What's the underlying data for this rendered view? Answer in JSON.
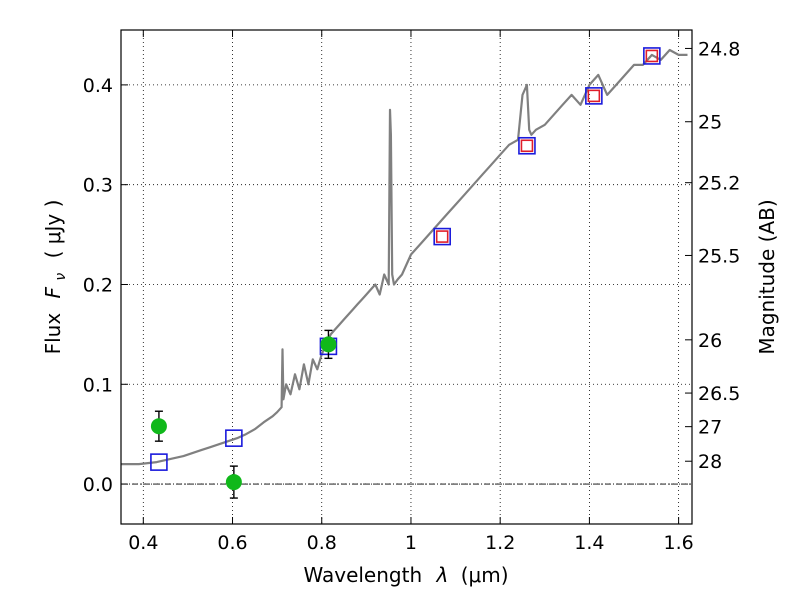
{
  "chart_data": {
    "type": "scatter",
    "xlabel_prefix": "Wavelength",
    "xlabel_symbol": "λ",
    "xlabel_unit": "(μm)",
    "ylabel_prefix": "Flux",
    "ylabel_symbol": "F",
    "ylabel_subscript": "ν",
    "ylabel_unit": "( μJy )",
    "y2label": "Magnitude (AB)",
    "xlim": [
      0.35,
      1.63
    ],
    "ylim": [
      -0.04,
      0.455
    ],
    "xticks": [
      0.4,
      0.6,
      0.8,
      1.0,
      1.2,
      1.4,
      1.6
    ],
    "xtick_labels": [
      "0.4",
      "0.6",
      "0.8",
      "1",
      "1.2",
      "1.4",
      "1.6"
    ],
    "yticks": [
      0.0,
      0.1,
      0.2,
      0.3,
      0.4
    ],
    "ytick_labels": [
      "0.0",
      "0.1",
      "0.2",
      "0.3",
      "0.4"
    ],
    "y2ticks": [
      {
        "label": "24.8",
        "mag": 24.8
      },
      {
        "label": "25",
        "mag": 25.0
      },
      {
        "label": "25.2",
        "mag": 25.2
      },
      {
        "label": "25.5",
        "mag": 25.5
      },
      {
        "label": "26",
        "mag": 26.0
      },
      {
        "label": "26.5",
        "mag": 26.5
      },
      {
        "label": "27",
        "mag": 27.0
      },
      {
        "label": "28",
        "mag": 28.0
      }
    ],
    "grid": true,
    "zero_line": true,
    "series": [
      {
        "kind": "line",
        "color": "#808080",
        "x": [
          0.35,
          0.37,
          0.39,
          0.41,
          0.43,
          0.45,
          0.47,
          0.49,
          0.51,
          0.53,
          0.55,
          0.57,
          0.59,
          0.61,
          0.63,
          0.65,
          0.67,
          0.69,
          0.7,
          0.71,
          0.712,
          0.714,
          0.72,
          0.73,
          0.74,
          0.75,
          0.76,
          0.77,
          0.78,
          0.79,
          0.8,
          0.81,
          0.82,
          0.83,
          0.84,
          0.85,
          0.86,
          0.87,
          0.88,
          0.89,
          0.9,
          0.91,
          0.92,
          0.93,
          0.94,
          0.95,
          0.953,
          0.955,
          0.958,
          0.962,
          0.97,
          0.98,
          0.99,
          1.0,
          1.02,
          1.04,
          1.06,
          1.08,
          1.1,
          1.12,
          1.14,
          1.16,
          1.18,
          1.2,
          1.22,
          1.24,
          1.25,
          1.26,
          1.265,
          1.27,
          1.28,
          1.3,
          1.32,
          1.34,
          1.36,
          1.38,
          1.4,
          1.42,
          1.44,
          1.46,
          1.48,
          1.5,
          1.52,
          1.54,
          1.56,
          1.58,
          1.6,
          1.62
        ],
        "y": [
          0.02,
          0.02,
          0.02,
          0.021,
          0.022,
          0.024,
          0.026,
          0.028,
          0.031,
          0.034,
          0.037,
          0.04,
          0.043,
          0.046,
          0.05,
          0.055,
          0.062,
          0.068,
          0.072,
          0.077,
          0.135,
          0.085,
          0.1,
          0.09,
          0.11,
          0.095,
          0.12,
          0.1,
          0.125,
          0.115,
          0.13,
          0.14,
          0.15,
          0.155,
          0.16,
          0.165,
          0.17,
          0.175,
          0.18,
          0.185,
          0.19,
          0.195,
          0.2,
          0.19,
          0.21,
          0.2,
          0.375,
          0.35,
          0.21,
          0.2,
          0.205,
          0.21,
          0.22,
          0.23,
          0.24,
          0.25,
          0.26,
          0.27,
          0.28,
          0.29,
          0.3,
          0.31,
          0.32,
          0.33,
          0.34,
          0.345,
          0.39,
          0.4,
          0.355,
          0.35,
          0.355,
          0.36,
          0.37,
          0.38,
          0.39,
          0.38,
          0.4,
          0.41,
          0.39,
          0.4,
          0.41,
          0.42,
          0.42,
          0.43,
          0.425,
          0.435,
          0.43,
          0.43
        ]
      },
      {
        "kind": "squares",
        "name": "",
        "edgecolor": "#1a1adc",
        "points": [
          {
            "x": 0.435,
            "y": 0.022
          },
          {
            "x": 0.603,
            "y": 0.046
          },
          {
            "x": 0.815,
            "y": 0.138
          },
          {
            "x": 1.07,
            "y": 0.248
          },
          {
            "x": 1.26,
            "y": 0.339
          },
          {
            "x": 1.41,
            "y": 0.389
          },
          {
            "x": 1.54,
            "y": 0.429
          }
        ]
      },
      {
        "kind": "squares",
        "name": "",
        "edgecolor": "#e01e2a",
        "points": [
          {
            "x": 1.07,
            "y": 0.248
          },
          {
            "x": 1.26,
            "y": 0.339
          },
          {
            "x": 1.41,
            "y": 0.389
          },
          {
            "x": 1.54,
            "y": 0.429
          }
        ]
      },
      {
        "kind": "errorbar-points",
        "name": "",
        "color": "#10b81a",
        "points": [
          {
            "x": 0.435,
            "y": 0.058,
            "err": 0.015
          },
          {
            "x": 0.603,
            "y": 0.002,
            "err": 0.016
          },
          {
            "x": 0.815,
            "y": 0.14,
            "err": 0.014
          }
        ]
      }
    ]
  }
}
